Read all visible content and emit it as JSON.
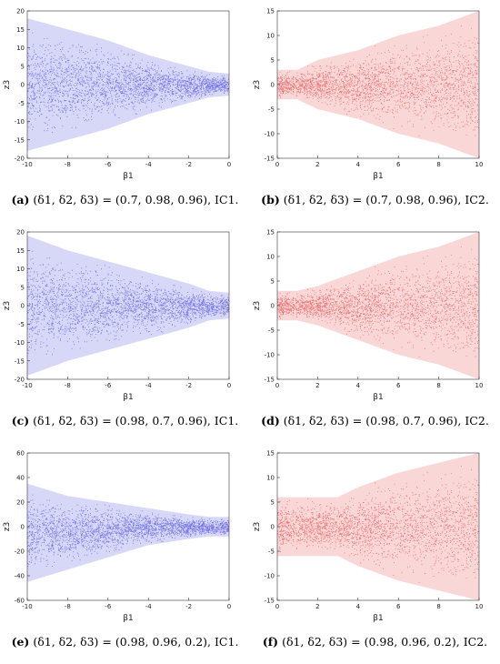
{
  "figure": {
    "panels": [
      {
        "label": "(a)",
        "caption": "(δ1, δ2, δ3) = (0.7, 0.98, 0.96), IC1."
      },
      {
        "label": "(b)",
        "caption": "(δ1, δ2, δ3) = (0.7, 0.98, 0.96), IC2."
      },
      {
        "label": "(c)",
        "caption": "(δ1, δ2, δ3) = (0.98, 0.7, 0.96), IC1."
      },
      {
        "label": "(d)",
        "caption": "(δ1, δ2, δ3) = (0.98, 0.7, 0.96), IC2."
      },
      {
        "label": "(e)",
        "caption": "(δ1, δ2, δ3) = (0.98, 0.96, 0.2), IC1."
      },
      {
        "label": "(f)",
        "caption": "(δ1, δ2, δ3) = (0.98, 0.96, 0.2), IC2."
      }
    ]
  },
  "chart_data": [
    {
      "type": "scatter",
      "xlabel": "β1",
      "ylabel": "z3",
      "xlim": [
        -10,
        0
      ],
      "ylim": [
        -20,
        20
      ],
      "xticks": [
        -10,
        -8,
        -6,
        -4,
        -2,
        0
      ],
      "yticks": [
        -20,
        -15,
        -10,
        -5,
        0,
        5,
        10,
        15,
        20
      ],
      "color": "#1f1fd6",
      "grid": false,
      "series": [
        {
          "x": [
            -10,
            -8,
            -6,
            -4,
            -2,
            -1,
            0
          ],
          "y_max": [
            18,
            15,
            12,
            8,
            5,
            3.5,
            3
          ],
          "y_min": [
            -18,
            -15,
            -12,
            -8,
            -5,
            -3.5,
            -3
          ]
        }
      ]
    },
    {
      "type": "scatter",
      "xlabel": "β1",
      "ylabel": "z3",
      "xlim": [
        0,
        10
      ],
      "ylim": [
        -15,
        15
      ],
      "xticks": [
        0,
        2,
        4,
        6,
        8,
        10
      ],
      "yticks": [
        -15,
        -10,
        -5,
        0,
        5,
        10,
        15
      ],
      "color": "#e01f1f",
      "grid": false,
      "series": [
        {
          "x": [
            0,
            1,
            2,
            4,
            6,
            8,
            10
          ],
          "y_max": [
            3,
            3,
            5,
            7,
            10,
            12,
            15
          ],
          "y_min": [
            -3,
            -3,
            -5,
            -7,
            -10,
            -12,
            -15
          ]
        }
      ]
    },
    {
      "type": "scatter",
      "xlabel": "β1",
      "ylabel": "z3",
      "xlim": [
        -10,
        0
      ],
      "ylim": [
        -20,
        20
      ],
      "xticks": [
        -10,
        -8,
        -6,
        -4,
        -2,
        0
      ],
      "yticks": [
        -20,
        -15,
        -10,
        -5,
        0,
        5,
        10,
        15,
        20
      ],
      "color": "#1f1fd6",
      "grid": false,
      "series": [
        {
          "x": [
            -10,
            -8,
            -6,
            -4,
            -2,
            -1,
            0
          ],
          "y_max": [
            19,
            15,
            12,
            9,
            6,
            4,
            3.5
          ],
          "y_min": [
            -19,
            -15,
            -12,
            -9,
            -6,
            -4,
            -3.5
          ]
        }
      ]
    },
    {
      "type": "scatter",
      "xlabel": "β1",
      "ylabel": "z3",
      "xlim": [
        0,
        10
      ],
      "ylim": [
        -15,
        15
      ],
      "xticks": [
        0,
        2,
        4,
        6,
        8,
        10
      ],
      "yticks": [
        -15,
        -10,
        -5,
        0,
        5,
        10,
        15
      ],
      "color": "#e01f1f",
      "grid": false,
      "series": [
        {
          "x": [
            0,
            1,
            2,
            4,
            6,
            8,
            10
          ],
          "y_max": [
            3,
            3,
            4,
            7,
            10,
            12,
            15
          ],
          "y_min": [
            -3,
            -3,
            -4,
            -7,
            -10,
            -12,
            -15
          ]
        }
      ]
    },
    {
      "type": "scatter",
      "xlabel": "β1",
      "ylabel": "z3",
      "xlim": [
        -10,
        0
      ],
      "ylim": [
        -60,
        60
      ],
      "xticks": [
        -10,
        -8,
        -6,
        -4,
        -2,
        0
      ],
      "yticks": [
        -60,
        -40,
        -20,
        0,
        20,
        40,
        60
      ],
      "color": "#1f1fd6",
      "grid": false,
      "series": [
        {
          "x": [
            -10,
            -8,
            -6,
            -4,
            -2,
            -1,
            0
          ],
          "y_max": [
            35,
            25,
            20,
            15,
            10,
            8,
            8
          ],
          "y_min": [
            -45,
            -35,
            -25,
            -15,
            -10,
            -8,
            -8
          ]
        }
      ]
    },
    {
      "type": "scatter",
      "xlabel": "β1",
      "ylabel": "z3",
      "xlim": [
        0,
        10
      ],
      "ylim": [
        -15,
        15
      ],
      "xticks": [
        0,
        2,
        4,
        6,
        8,
        10
      ],
      "yticks": [
        -15,
        -10,
        -5,
        0,
        5,
        10,
        15
      ],
      "color": "#e01f1f",
      "grid": false,
      "series": [
        {
          "x": [
            0,
            1,
            2,
            3,
            4,
            6,
            8,
            10
          ],
          "y_max": [
            6,
            6,
            6,
            6,
            8,
            11,
            13,
            15
          ],
          "y_min": [
            -6,
            -6,
            -6,
            -6,
            -8,
            -11,
            -13,
            -15
          ]
        }
      ]
    }
  ]
}
